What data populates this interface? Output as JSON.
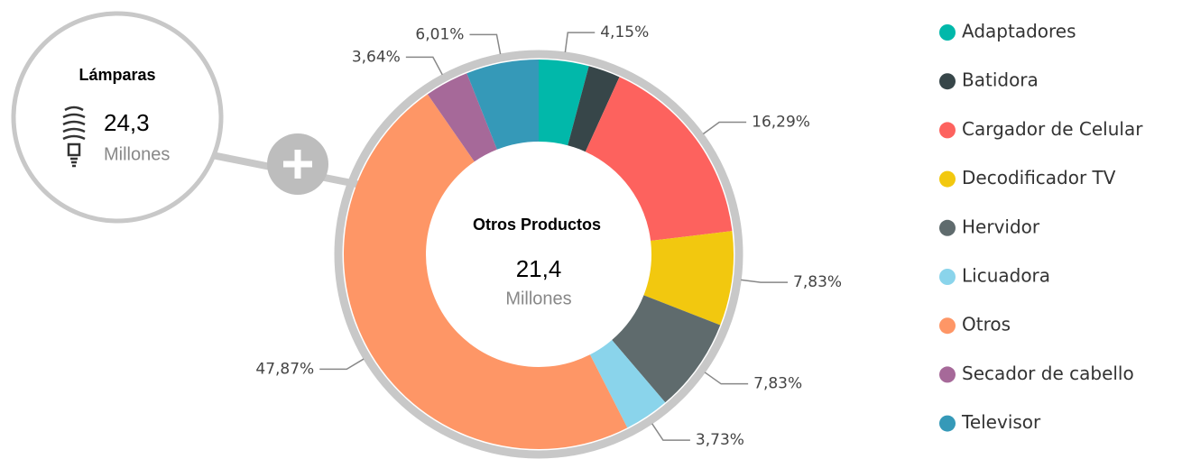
{
  "chart_data": {
    "type": "donut",
    "categories": [
      "Adaptadores",
      "Batidora",
      "Cargador de Celular",
      "Decodificador TV",
      "Hervidor",
      "Licuadora",
      "Otros",
      "Secador de cabello",
      "Televisor"
    ],
    "values": [
      4.15,
      2.65,
      16.29,
      7.83,
      7.83,
      3.73,
      47.87,
      3.64,
      6.01
    ],
    "value_labels": [
      "4,15%",
      null,
      "16,29%",
      "7,83%",
      "7,83%",
      "3,73%",
      "47,87%",
      "3,64%",
      "6,01%"
    ],
    "colors": [
      "#01b8aa",
      "#374649",
      "#fd625e",
      "#f2c80f",
      "#5f6b6d",
      "#8ad4eb",
      "#fe9666",
      "#a66999",
      "#3599b8"
    ],
    "center": {
      "title": "Otros Productos",
      "value": "21,4",
      "unit": "Millones"
    },
    "drill": {
      "title": "Lámparas",
      "value": "24,3",
      "unit": "Millones"
    },
    "legend": "right"
  }
}
